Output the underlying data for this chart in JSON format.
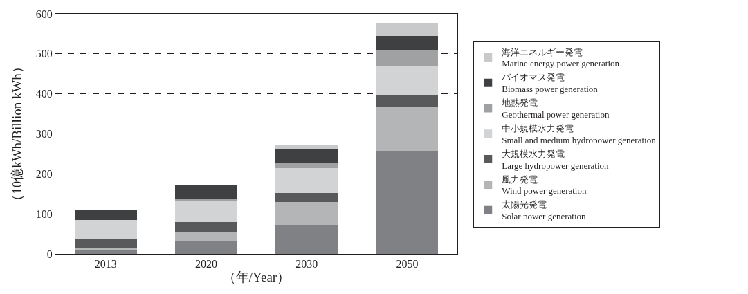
{
  "chart_data": {
    "type": "bar",
    "stacked": true,
    "xlabel": "（年/Year）",
    "ylabel": "（10億kWh/Billion kWh）",
    "categories": [
      "2013",
      "2020",
      "2030",
      "2050"
    ],
    "ylim": [
      0,
      600
    ],
    "yticks": [
      0,
      100,
      200,
      300,
      400,
      500,
      600
    ],
    "grid": "y",
    "legend": "right",
    "series": [
      {
        "name": "太陽光発電\nSolar power generation",
        "color": "#808184",
        "values": [
          12,
          31,
          73,
          258
        ]
      },
      {
        "name": "風力発電\nWind power generation",
        "color": "#b4b5b7",
        "values": [
          3,
          24,
          57,
          108
        ]
      },
      {
        "name": "大規模水力発電\nLarge hydropower generation",
        "color": "#58595b",
        "values": [
          23,
          25,
          23,
          30
        ]
      },
      {
        "name": "中小規模水力発電\nSmall and medium hydropower generation",
        "color": "#d2d3d5",
        "values": [
          47,
          53,
          61,
          75
        ]
      },
      {
        "name": "地熱発電\nGeothermal power generation",
        "color": "#a0a1a3",
        "values": [
          null,
          5,
          15,
          39
        ]
      },
      {
        "name": "バイオマス発電\nBiomass power generation",
        "color": "#3f4042",
        "values": [
          26,
          33,
          34,
          35
        ]
      },
      {
        "name": "海洋エネルギー発電\nMarine energy power generation",
        "color": "#c8c9ca",
        "values": [
          0,
          0,
          9,
          33
        ]
      }
    ]
  }
}
